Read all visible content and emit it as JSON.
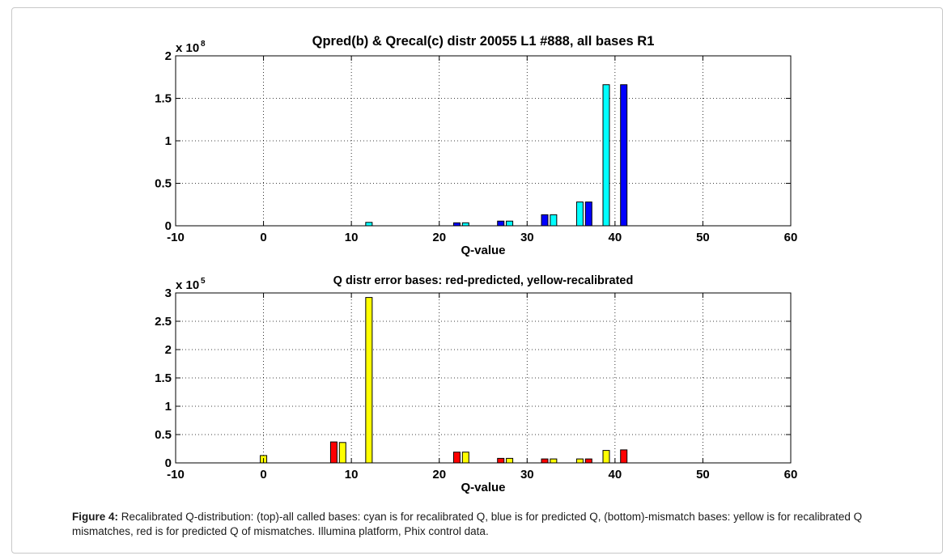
{
  "chart_data": [
    {
      "type": "bar",
      "title": "Qpred(b) & Qrecal(c) distr 20055 L1 #888, all bases R1",
      "xlabel": "Q-value",
      "ylabel": "",
      "xlim": [
        -10,
        60
      ],
      "ylim": [
        0,
        2
      ],
      "y_multiplier_base": "x 10",
      "y_multiplier_exp": "8",
      "xticks": [
        "-10",
        "0",
        "10",
        "20",
        "30",
        "40",
        "50",
        "60"
      ],
      "yticks": [
        "0",
        "0.5",
        "1",
        "1.5",
        "2"
      ],
      "grid": true,
      "series": [
        {
          "color": "#00ffff",
          "x": [
            12,
            23,
            28,
            33,
            36,
            39
          ],
          "values": [
            0.04,
            0.035,
            0.055,
            0.13,
            0.28,
            1.66
          ]
        },
        {
          "color": "#0000ff",
          "x": [
            22,
            27,
            32,
            37,
            41
          ],
          "values": [
            0.035,
            0.055,
            0.13,
            0.28,
            1.66
          ]
        }
      ]
    },
    {
      "type": "bar",
      "title": "Q distr error bases: red-predicted, yellow-recalibrated",
      "xlabel": "Q-value",
      "ylabel": "",
      "xlim": [
        -10,
        60
      ],
      "ylim": [
        0,
        3
      ],
      "y_multiplier_base": "x 10",
      "y_multiplier_exp": "5",
      "xticks": [
        "-10",
        "0",
        "10",
        "20",
        "30",
        "40",
        "50",
        "60"
      ],
      "yticks": [
        "0",
        "0.5",
        "1",
        "1.5",
        "2",
        "2.5",
        "3"
      ],
      "grid": true,
      "series": [
        {
          "color": "#ffff00",
          "x": [
            0,
            9,
            12,
            23,
            28,
            33,
            36,
            39
          ],
          "values": [
            0.13,
            0.36,
            2.92,
            0.19,
            0.08,
            0.07,
            0.07,
            0.22
          ]
        },
        {
          "color": "#ff0000",
          "x": [
            8,
            22,
            27,
            32,
            37,
            41
          ],
          "values": [
            0.37,
            0.19,
            0.08,
            0.07,
            0.07,
            0.23
          ]
        }
      ]
    }
  ],
  "caption": {
    "label": "Figure 4:",
    "text": " Recalibrated Q-distribution: (top)-all called bases: cyan is for recalibrated Q, blue is for predicted Q, (bottom)-mismatch bases: yellow is for recalibrated Q mismatches, red is for predicted Q of mismatches. Illumina platform, Phix control data."
  }
}
